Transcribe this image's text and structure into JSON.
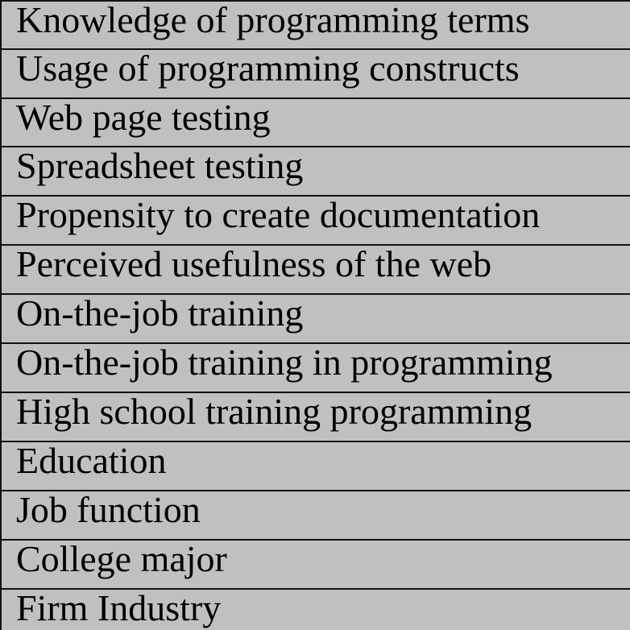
{
  "table": {
    "rows": [
      "Knowledge of programming terms",
      "Usage of programming constructs",
      "Web page testing",
      "Spreadsheet testing",
      "Propensity to create documentation",
      "Perceived usefulness of the web",
      "On-the-job training",
      "On-the-job training in programming",
      "High school training programming",
      "Education",
      "Job function",
      "College major",
      "Firm Industry"
    ]
  },
  "colors": {
    "background": "#c0c0c0",
    "rule": "#111111",
    "text": "#000000"
  }
}
